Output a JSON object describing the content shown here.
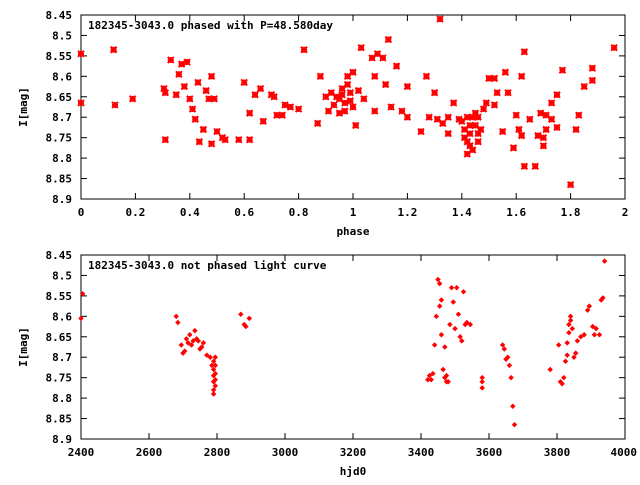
{
  "chart_data": [
    {
      "type": "scatter",
      "title": "182345-3043.0 phased with P=48.580day",
      "xlabel": "phase",
      "ylabel": "I[mag]",
      "xlim": [
        0,
        2
      ],
      "ylim": [
        8.45,
        8.9
      ],
      "y_inverted": true,
      "x_ticks": [
        0,
        0.2,
        0.4,
        0.6,
        0.8,
        1,
        1.2,
        1.4,
        1.6,
        1.8,
        2
      ],
      "x_tick_labels": [
        "0",
        "0.2",
        "0.4",
        "0.6",
        "0.8",
        "1",
        "1.2",
        "1.4",
        "1.6",
        "1.8",
        "2"
      ],
      "y_ticks": [
        8.45,
        8.5,
        8.55,
        8.6,
        8.65,
        8.7,
        8.75,
        8.8,
        8.85,
        8.9
      ],
      "y_tick_labels": [
        "8.45",
        "8.5",
        "8.55",
        "8.6",
        "8.65",
        "8.7",
        "8.75",
        "8.8",
        "8.85",
        "8.9"
      ],
      "marker": "star",
      "color": "#ff0000",
      "points": [
        [
          0.0,
          8.545
        ],
        [
          0.0,
          8.665
        ],
        [
          0.12,
          8.535
        ],
        [
          0.125,
          8.67
        ],
        [
          0.19,
          8.655
        ],
        [
          0.305,
          8.63
        ],
        [
          0.31,
          8.64
        ],
        [
          0.31,
          8.755
        ],
        [
          0.33,
          8.56
        ],
        [
          0.35,
          8.645
        ],
        [
          0.36,
          8.595
        ],
        [
          0.37,
          8.57
        ],
        [
          0.38,
          8.625
        ],
        [
          0.39,
          8.565
        ],
        [
          0.4,
          8.655
        ],
        [
          0.41,
          8.68
        ],
        [
          0.42,
          8.705
        ],
        [
          0.43,
          8.615
        ],
        [
          0.435,
          8.76
        ],
        [
          0.45,
          8.73
        ],
        [
          0.46,
          8.635
        ],
        [
          0.47,
          8.655
        ],
        [
          0.48,
          8.765
        ],
        [
          0.48,
          8.6
        ],
        [
          0.49,
          8.655
        ],
        [
          0.5,
          8.735
        ],
        [
          0.52,
          8.75
        ],
        [
          0.53,
          8.755
        ],
        [
          0.58,
          8.755
        ],
        [
          0.6,
          8.615
        ],
        [
          0.62,
          8.755
        ],
        [
          0.62,
          8.69
        ],
        [
          0.64,
          8.645
        ],
        [
          0.66,
          8.63
        ],
        [
          0.67,
          8.71
        ],
        [
          0.7,
          8.645
        ],
        [
          0.71,
          8.65
        ],
        [
          0.72,
          8.695
        ],
        [
          0.74,
          8.695
        ],
        [
          0.75,
          8.67
        ],
        [
          0.77,
          8.675
        ],
        [
          0.8,
          8.68
        ],
        [
          0.82,
          8.535
        ],
        [
          0.87,
          8.715
        ],
        [
          0.88,
          8.6
        ],
        [
          0.9,
          8.65
        ],
        [
          0.91,
          8.685
        ],
        [
          0.92,
          8.64
        ],
        [
          0.93,
          8.67
        ],
        [
          0.94,
          8.65
        ],
        [
          0.95,
          8.655
        ],
        [
          0.95,
          8.69
        ],
        [
          0.96,
          8.645
        ],
        [
          0.96,
          8.63
        ],
        [
          0.97,
          8.665
        ],
        [
          0.97,
          8.685
        ],
        [
          0.98,
          8.6
        ],
        [
          0.98,
          8.62
        ],
        [
          0.99,
          8.64
        ],
        [
          0.99,
          8.66
        ],
        [
          1.0,
          8.675
        ],
        [
          1.0,
          8.59
        ],
        [
          1.01,
          8.72
        ],
        [
          1.02,
          8.635
        ],
        [
          1.03,
          8.53
        ],
        [
          1.04,
          8.655
        ],
        [
          1.07,
          8.555
        ],
        [
          1.08,
          8.685
        ],
        [
          1.08,
          8.6
        ],
        [
          1.09,
          8.545
        ],
        [
          1.11,
          8.555
        ],
        [
          1.12,
          8.62
        ],
        [
          1.13,
          8.51
        ],
        [
          1.14,
          8.675
        ],
        [
          1.16,
          8.575
        ],
        [
          1.18,
          8.685
        ],
        [
          1.2,
          8.625
        ],
        [
          1.2,
          8.7
        ],
        [
          1.25,
          8.735
        ],
        [
          1.27,
          8.6
        ],
        [
          1.28,
          8.7
        ],
        [
          1.3,
          8.64
        ],
        [
          1.31,
          8.705
        ],
        [
          1.32,
          8.46
        ],
        [
          1.33,
          8.715
        ],
        [
          1.35,
          8.7
        ],
        [
          1.35,
          8.74
        ],
        [
          1.37,
          8.665
        ],
        [
          1.39,
          8.705
        ],
        [
          1.4,
          8.71
        ],
        [
          1.41,
          8.73
        ],
        [
          1.41,
          8.75
        ],
        [
          1.42,
          8.7
        ],
        [
          1.42,
          8.76
        ],
        [
          1.42,
          8.79
        ],
        [
          1.43,
          8.72
        ],
        [
          1.43,
          8.74
        ],
        [
          1.43,
          8.77
        ],
        [
          1.44,
          8.7
        ],
        [
          1.44,
          8.78
        ],
        [
          1.45,
          8.72
        ],
        [
          1.45,
          8.69
        ],
        [
          1.46,
          8.7
        ],
        [
          1.46,
          8.74
        ],
        [
          1.46,
          8.76
        ],
        [
          1.47,
          8.73
        ],
        [
          1.48,
          8.68
        ],
        [
          1.49,
          8.665
        ],
        [
          1.5,
          8.605
        ],
        [
          1.52,
          8.605
        ],
        [
          1.52,
          8.67
        ],
        [
          1.53,
          8.64
        ],
        [
          1.55,
          8.735
        ],
        [
          1.56,
          8.59
        ],
        [
          1.57,
          8.64
        ],
        [
          1.59,
          8.775
        ],
        [
          1.6,
          8.695
        ],
        [
          1.61,
          8.73
        ],
        [
          1.62,
          8.745
        ],
        [
          1.62,
          8.6
        ],
        [
          1.63,
          8.82
        ],
        [
          1.63,
          8.54
        ],
        [
          1.65,
          8.705
        ],
        [
          1.67,
          8.82
        ],
        [
          1.68,
          8.745
        ],
        [
          1.69,
          8.69
        ],
        [
          1.7,
          8.77
        ],
        [
          1.7,
          8.75
        ],
        [
          1.71,
          8.73
        ],
        [
          1.71,
          8.695
        ],
        [
          1.73,
          8.665
        ],
        [
          1.73,
          8.705
        ],
        [
          1.75,
          8.645
        ],
        [
          1.75,
          8.725
        ],
        [
          1.77,
          8.585
        ],
        [
          1.8,
          8.865
        ],
        [
          1.82,
          8.73
        ],
        [
          1.83,
          8.695
        ],
        [
          1.85,
          8.625
        ],
        [
          1.88,
          8.61
        ],
        [
          1.88,
          8.58
        ],
        [
          1.96,
          8.53
        ]
      ]
    },
    {
      "type": "scatter",
      "title": "182345-3043.0 not phased light curve",
      "xlabel": "hjd0",
      "ylabel": "I[mag]",
      "xlim": [
        2400,
        4000
      ],
      "ylim": [
        8.45,
        8.9
      ],
      "y_inverted": true,
      "x_ticks": [
        2400,
        2600,
        2800,
        3000,
        3200,
        3400,
        3600,
        3800,
        4000
      ],
      "x_tick_labels": [
        "2400",
        "2600",
        "2800",
        "3000",
        "3200",
        "3400",
        "3600",
        "3800",
        "4000"
      ],
      "y_ticks": [
        8.45,
        8.5,
        8.55,
        8.6,
        8.65,
        8.7,
        8.75,
        8.8,
        8.85,
        8.9
      ],
      "y_tick_labels": [
        "8.45",
        "8.5",
        "8.55",
        "8.6",
        "8.65",
        "8.7",
        "8.75",
        "8.8",
        "8.85",
        "8.9"
      ],
      "marker": "diamond",
      "color": "#ff0000",
      "points": [
        [
          2400,
          8.605
        ],
        [
          2405,
          8.545
        ],
        [
          2680,
          8.6
        ],
        [
          2685,
          8.615
        ],
        [
          2695,
          8.67
        ],
        [
          2700,
          8.69
        ],
        [
          2705,
          8.685
        ],
        [
          2710,
          8.655
        ],
        [
          2715,
          8.665
        ],
        [
          2720,
          8.645
        ],
        [
          2725,
          8.67
        ],
        [
          2730,
          8.66
        ],
        [
          2735,
          8.635
        ],
        [
          2740,
          8.655
        ],
        [
          2745,
          8.66
        ],
        [
          2750,
          8.68
        ],
        [
          2755,
          8.675
        ],
        [
          2760,
          8.665
        ],
        [
          2770,
          8.695
        ],
        [
          2780,
          8.7
        ],
        [
          2785,
          8.72
        ],
        [
          2790,
          8.71
        ],
        [
          2790,
          8.73
        ],
        [
          2790,
          8.745
        ],
        [
          2790,
          8.76
        ],
        [
          2790,
          8.78
        ],
        [
          2790,
          8.79
        ],
        [
          2795,
          8.7
        ],
        [
          2795,
          8.72
        ],
        [
          2795,
          8.74
        ],
        [
          2795,
          8.755
        ],
        [
          2795,
          8.77
        ],
        [
          2870,
          8.595
        ],
        [
          2880,
          8.62
        ],
        [
          2885,
          8.625
        ],
        [
          2895,
          8.605
        ],
        [
          3420,
          8.755
        ],
        [
          3425,
          8.745
        ],
        [
          3430,
          8.755
        ],
        [
          3435,
          8.74
        ],
        [
          3440,
          8.67
        ],
        [
          3445,
          8.6
        ],
        [
          3450,
          8.51
        ],
        [
          3455,
          8.52
        ],
        [
          3455,
          8.575
        ],
        [
          3460,
          8.56
        ],
        [
          3460,
          8.645
        ],
        [
          3465,
          8.73
        ],
        [
          3470,
          8.75
        ],
        [
          3470,
          8.675
        ],
        [
          3475,
          8.745
        ],
        [
          3475,
          8.76
        ],
        [
          3480,
          8.76
        ],
        [
          3485,
          8.62
        ],
        [
          3490,
          8.53
        ],
        [
          3495,
          8.565
        ],
        [
          3500,
          8.63
        ],
        [
          3505,
          8.53
        ],
        [
          3510,
          8.595
        ],
        [
          3515,
          8.65
        ],
        [
          3520,
          8.66
        ],
        [
          3525,
          8.54
        ],
        [
          3530,
          8.62
        ],
        [
          3535,
          8.615
        ],
        [
          3545,
          8.62
        ],
        [
          3580,
          8.75
        ],
        [
          3580,
          8.76
        ],
        [
          3580,
          8.775
        ],
        [
          3640,
          8.67
        ],
        [
          3645,
          8.68
        ],
        [
          3650,
          8.705
        ],
        [
          3655,
          8.7
        ],
        [
          3660,
          8.72
        ],
        [
          3665,
          8.75
        ],
        [
          3670,
          8.82
        ],
        [
          3675,
          8.865
        ],
        [
          3780,
          8.73
        ],
        [
          3805,
          8.67
        ],
        [
          3810,
          8.76
        ],
        [
          3815,
          8.765
        ],
        [
          3820,
          8.75
        ],
        [
          3825,
          8.71
        ],
        [
          3830,
          8.695
        ],
        [
          3830,
          8.665
        ],
        [
          3835,
          8.64
        ],
        [
          3835,
          8.62
        ],
        [
          3840,
          8.61
        ],
        [
          3840,
          8.6
        ],
        [
          3845,
          8.63
        ],
        [
          3850,
          8.7
        ],
        [
          3855,
          8.69
        ],
        [
          3860,
          8.66
        ],
        [
          3870,
          8.65
        ],
        [
          3880,
          8.645
        ],
        [
          3890,
          8.585
        ],
        [
          3895,
          8.575
        ],
        [
          3905,
          8.625
        ],
        [
          3910,
          8.645
        ],
        [
          3915,
          8.63
        ],
        [
          3925,
          8.645
        ],
        [
          3930,
          8.56
        ],
        [
          3935,
          8.555
        ],
        [
          3940,
          8.465
        ]
      ]
    }
  ]
}
